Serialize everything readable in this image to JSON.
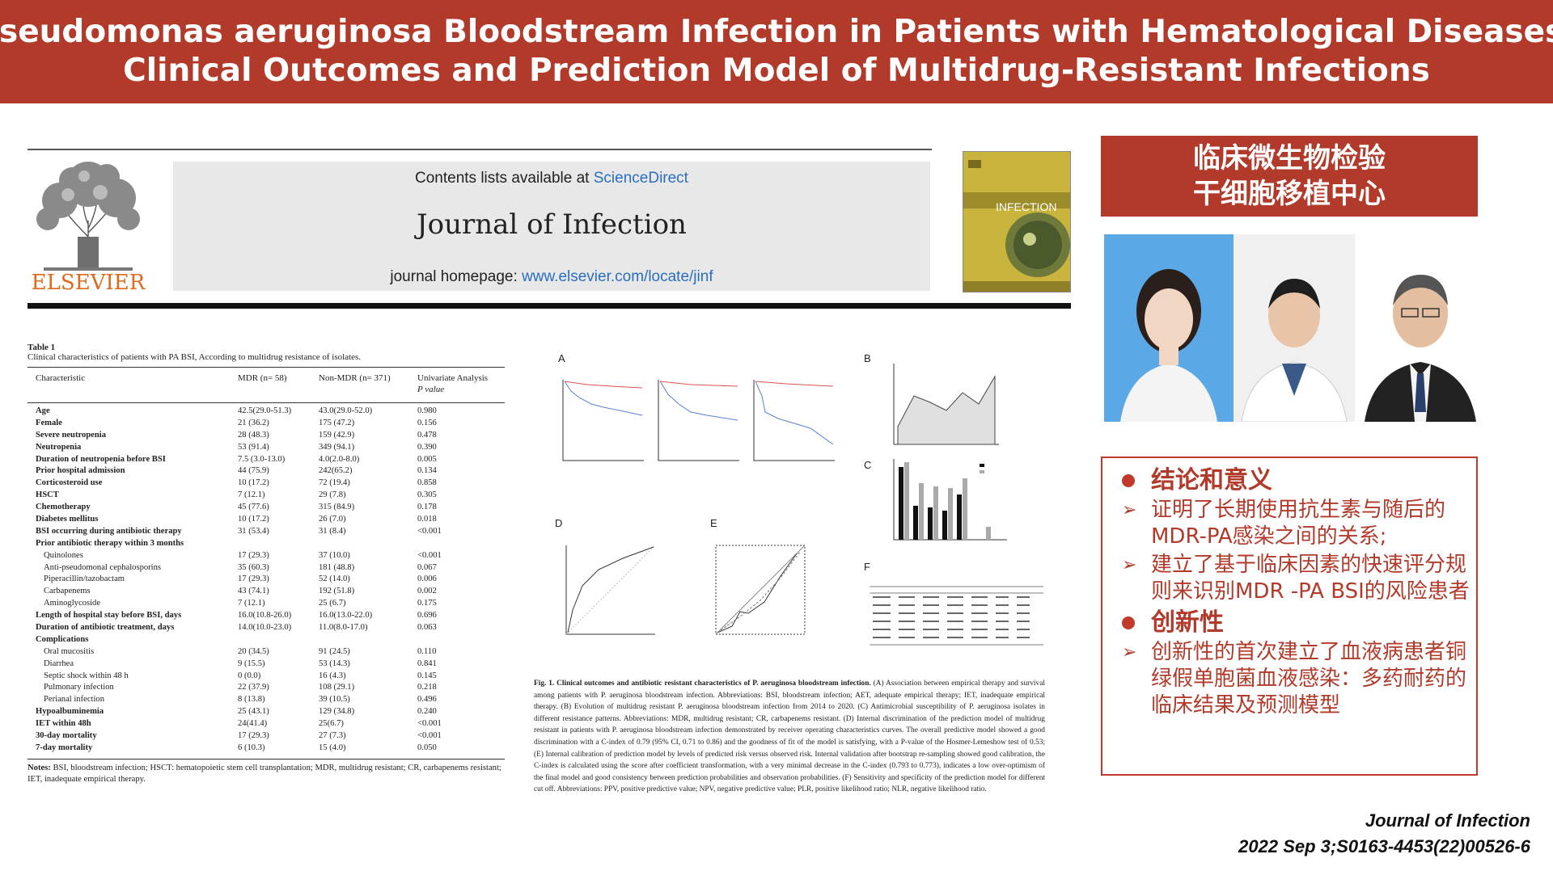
{
  "banner": {
    "title_line1": "Pseudomonas aeruginosa Bloodstream Infection in Patients with Hematological Diseases:",
    "title_line2": "Clinical Outcomes and Prediction Model of Multidrug-Resistant Infections"
  },
  "journal": {
    "publisher": "ELSEVIER",
    "contents_prefix": "Contents lists available at ",
    "contents_link": "ScienceDirect",
    "name": "Journal of Infection",
    "homepage_prefix": "journal homepage: ",
    "homepage_link": "www.elsevier.com/locate/jinf",
    "cover_title": "INFECTION"
  },
  "table": {
    "label": "Table 1",
    "caption": "Clinical characteristics of patients with PA BSI, According to multidrug resistance of isolates.",
    "headers": [
      "Characteristic",
      "MDR (n= 58)",
      "Non-MDR (n= 371)",
      "Univariate Analysis",
      "P value"
    ],
    "rows": [
      {
        "name": "Age",
        "mdr": "42.5(29.0-51.3)",
        "non": "43.0(29.0-52.0)",
        "p": "0.980",
        "style": "bold"
      },
      {
        "name": "Female",
        "mdr": "21 (36.2)",
        "non": "175 (47.2)",
        "p": "0.156",
        "style": "bold"
      },
      {
        "name": "Severe neutropenia",
        "mdr": "28 (48.3)",
        "non": "159 (42.9)",
        "p": "0.478",
        "style": "bold"
      },
      {
        "name": "Neutropenia",
        "mdr": "53 (91.4)",
        "non": "349 (94.1)",
        "p": "0.390",
        "style": "bold"
      },
      {
        "name": "Duration of neutropenia before BSI",
        "mdr": "7.5 (3.0-13.0)",
        "non": "4.0(2.0-8.0)",
        "p": "0.005",
        "style": "bold"
      },
      {
        "name": "Prior hospital admission",
        "mdr": "44 (75.9)",
        "non": "242(65.2)",
        "p": "0.134",
        "style": "bold"
      },
      {
        "name": "Corticosteroid use",
        "mdr": "10 (17.2)",
        "non": "72 (19.4)",
        "p": "0.858",
        "style": "bold"
      },
      {
        "name": "HSCT",
        "mdr": "7 (12.1)",
        "non": "29 (7.8)",
        "p": "0.305",
        "style": "bold"
      },
      {
        "name": "Chemotherapy",
        "mdr": "45 (77.6)",
        "non": "315 (84.9)",
        "p": "0.178",
        "style": "bold"
      },
      {
        "name": "Diabetes mellitus",
        "mdr": "10 (17.2)",
        "non": "26 (7.0)",
        "p": "0.018",
        "style": "bold"
      },
      {
        "name": "BSI occurring during antibiotic therapy",
        "mdr": "31 (53.4)",
        "non": "31 (8.4)",
        "p": "<0.001",
        "style": "bold"
      },
      {
        "name": "Prior antibiotic therapy within 3 months",
        "mdr": "",
        "non": "",
        "p": "",
        "style": "bold"
      },
      {
        "name": "Quinolones",
        "mdr": "17 (29.3)",
        "non": "37 (10.0)",
        "p": "<0.001",
        "style": "sub"
      },
      {
        "name": "Anti-pseudomonal cephalosporins",
        "mdr": "35 (60.3)",
        "non": "181 (48.8)",
        "p": "0.067",
        "style": "sub"
      },
      {
        "name": "Piperacillin/tazobactam",
        "mdr": "17 (29.3)",
        "non": "52 (14.0)",
        "p": "0.006",
        "style": "sub"
      },
      {
        "name": "Carbapenems",
        "mdr": "43 (74.1)",
        "non": "192 (51.8)",
        "p": "0.002",
        "style": "sub"
      },
      {
        "name": "Aminoglycoside",
        "mdr": "7 (12.1)",
        "non": "25 (6.7)",
        "p": "0.175",
        "style": "sub"
      },
      {
        "name": "Length of hospital stay before BSI, days",
        "mdr": "16.0(10.8-26.0)",
        "non": "16.0(13.0-22.0)",
        "p": "0.696",
        "style": "bold"
      },
      {
        "name": "Duration of antibiotic treatment, days",
        "mdr": "14.0(10.0-23.0)",
        "non": "11.0(8.0-17.0)",
        "p": "0.063",
        "style": "bold"
      },
      {
        "name": "Complications",
        "mdr": "",
        "non": "",
        "p": "",
        "style": "bold"
      },
      {
        "name": "Oral mucositis",
        "mdr": "20 (34.5)",
        "non": "91 (24.5)",
        "p": "0.110",
        "style": "sub"
      },
      {
        "name": "Diarrhea",
        "mdr": "9 (15.5)",
        "non": "53 (14.3)",
        "p": "0.841",
        "style": "sub"
      },
      {
        "name": "Septic shock within 48 h",
        "mdr": "0 (0.0)",
        "non": "16 (4.3)",
        "p": "0.145",
        "style": "sub"
      },
      {
        "name": "Pulmonary infection",
        "mdr": "22 (37.9)",
        "non": "108 (29.1)",
        "p": "0.218",
        "style": "sub"
      },
      {
        "name": "Perianal infection",
        "mdr": "8 (13.8)",
        "non": "39 (10.5)",
        "p": "0.496",
        "style": "sub"
      },
      {
        "name": "Hypoalbuminemia",
        "mdr": "25 (43.1)",
        "non": "129 (34.8)",
        "p": "0.240",
        "style": "bold"
      },
      {
        "name": "IET within 48h",
        "mdr": "24(41.4)",
        "non": "25(6.7)",
        "p": "<0.001",
        "style": "bold"
      },
      {
        "name": "30-day mortality",
        "mdr": "17 (29.3)",
        "non": "27 (7.3)",
        "p": "<0.001",
        "style": "bold"
      },
      {
        "name": "7-day mortality",
        "mdr": "6 (10.3)",
        "non": "15 (4.0)",
        "p": "0.050",
        "style": "bold"
      }
    ],
    "notes_label": "Notes:",
    "notes": "BSI, bloodstream infection; HSCT: hematopoietic stem cell transplantation; MDR, multidrug resistant; CR, carbapenems resistant; IET, inadequate empirical therapy."
  },
  "figure": {
    "panel_labels": [
      "A",
      "B",
      "C",
      "D",
      "E",
      "F"
    ],
    "caption_label": "Fig. 1. Clinical outcomes and antibiotic resistant characteristics of P. aeruginosa bloodstream infection.",
    "caption": "(A) Association between empirical therapy and survival among patients with P. aeruginosa bloodstream infection. Abbreviations: BSI, bloodstream infection; AET, adequate empirical therapy; IET, inadequate empirical therapy. (B) Evolution of multidrug resistant P. aeruginosa bloodstream infection from 2014 to 2020. (C) Antimicrobial susceptibility of P. aeruginosa isolates in different resistance patterns. Abbreviations: MDR, multidrug resistant; CR, carbapenems resistant. (D) Internal discrimination of the prediction model of multidrug resistant in patients with P. aeruginosa bloodstream infection demonstrated by receiver operating characteristics curves. The overall predictive model showed a good discrimination with a C-index of 0.79 (95% CI, 0.71 to 0.86) and the goodness of fit of the model is satisfying, with a P-value of the Hosmer-Lemeshow test of 0.53; (E) Internal calibration of prediction model by levels of predicted risk versus observed risk. Internal validation after bootstrap re-sampling showed good calibration, the C-index is calculated using the score after coefficient transformation, with a very minimal decrease in the C-index (0.793 to 0.773), indicates a low over-optimism of the final model and good consistency between prediction probabilities and observation probabilities. (F) Sensitivity and specificity of the prediction model for different cut off. Abbreviations: PPV, positive predictive value; NPV, negative predictive value; PLR, positive likelihood ratio; NLR, negative likelihood ratio."
  },
  "right": {
    "dept_line1": "临床微生物检验",
    "dept_line2": "干细胞移植中心",
    "section1_title": "结论和意义",
    "section1_items": [
      "证明了长期使用抗生素与随后的MDR-PA感染之间的关系;",
      "建立了基于临床因素的快速评分规则来识别MDR -PA BSI的风险患者"
    ],
    "section2_title": "创新性",
    "section2_items": [
      "创新性的首次建立了血液病患者铜绿假单胞菌血液感染：多药耐药的临床结果及预测模型"
    ]
  },
  "citation": {
    "line1": "Journal of Infection",
    "line2": "2022 Sep 3;S0163-4453(22)00526-6"
  },
  "colors": {
    "accent_red": "#b23a2a",
    "link_blue": "#2a6ebf",
    "elsevier_orange": "#e06a1b"
  }
}
